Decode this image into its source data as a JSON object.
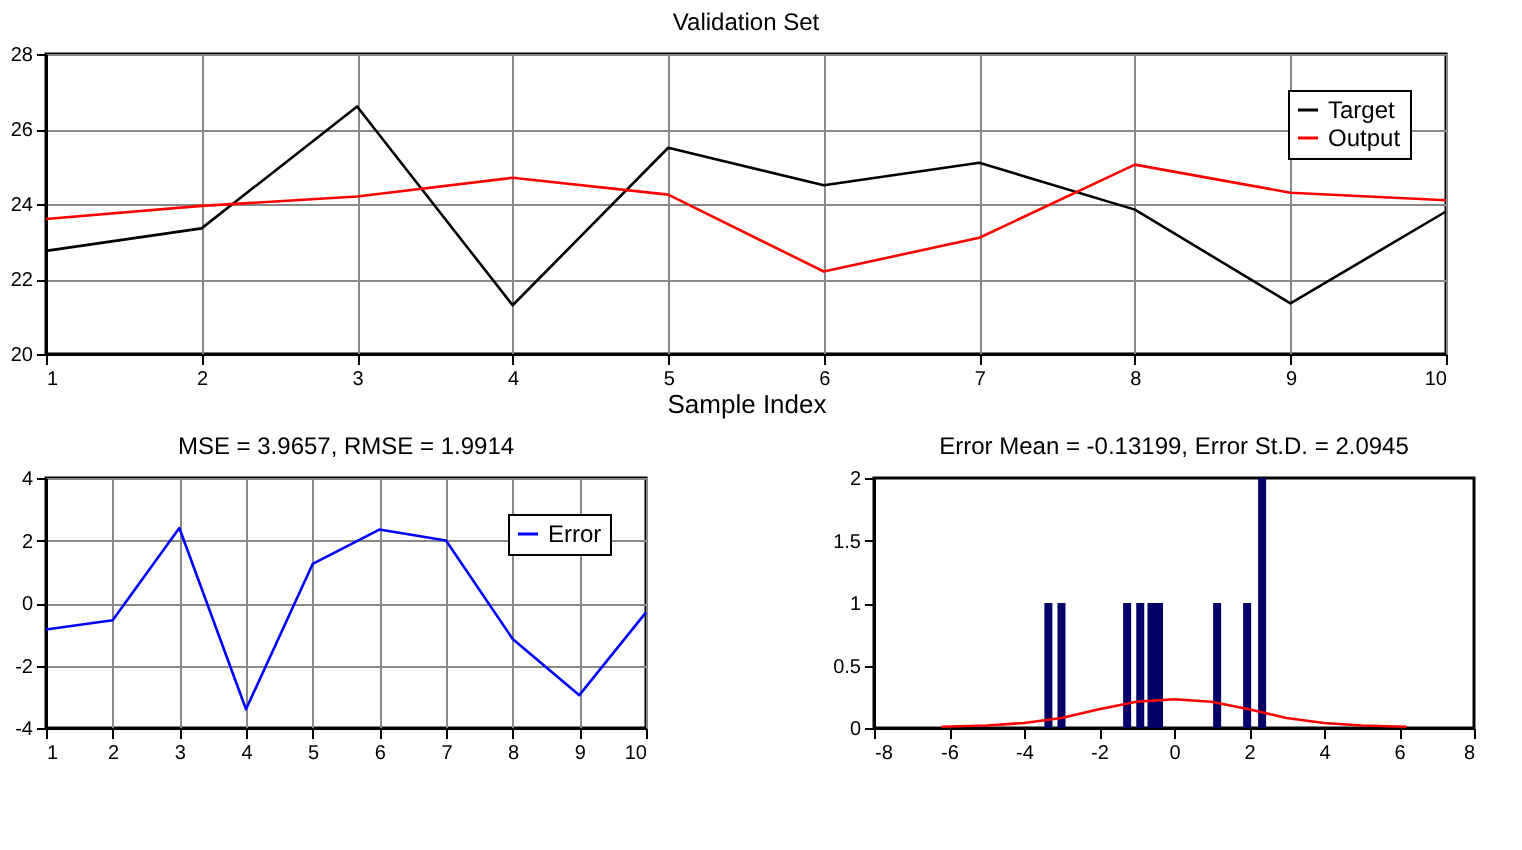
{
  "chart_data": [
    {
      "type": "line",
      "title": "Validation Set",
      "xlabel": "Sample Index",
      "x": [
        1,
        2,
        3,
        4,
        5,
        6,
        7,
        8,
        9,
        10
      ],
      "series": [
        {
          "name": "Target",
          "color": "#000000",
          "values": [
            22.75,
            23.35,
            26.6,
            21.3,
            25.5,
            24.5,
            25.1,
            23.85,
            21.35,
            23.8
          ]
        },
        {
          "name": "Output",
          "color": "#ff0000",
          "values": [
            23.6,
            23.95,
            24.2,
            24.7,
            24.25,
            22.2,
            23.1,
            25.05,
            24.3,
            24.1
          ]
        }
      ],
      "xlim": [
        1,
        10
      ],
      "xticks": [
        1,
        2,
        3,
        4,
        5,
        6,
        7,
        8,
        9,
        10
      ],
      "ylim": [
        20,
        28
      ],
      "yticks": [
        20,
        22,
        24,
        26,
        28
      ],
      "grid": true,
      "legend": "top right"
    },
    {
      "type": "line",
      "title": "MSE = 3.9657, RMSE = 1.9914",
      "x": [
        1,
        2,
        3,
        4,
        5,
        6,
        7,
        8,
        9,
        10
      ],
      "series": [
        {
          "name": "Error",
          "color": "#0000ff",
          "values": [
            -0.85,
            -0.55,
            2.4,
            -3.4,
            1.25,
            2.35,
            2.0,
            -1.15,
            -2.95,
            -0.3
          ]
        }
      ],
      "xlim": [
        1,
        10
      ],
      "xticks": [
        1,
        2,
        3,
        4,
        5,
        6,
        7,
        8,
        9,
        10
      ],
      "ylim": [
        -4,
        4
      ],
      "yticks": [
        -4,
        -2,
        0,
        2,
        4
      ],
      "grid": true,
      "legend": "top right"
    },
    {
      "type": "bar",
      "title": "Error Mean = -0.13199, Error St.D. = 2.0945",
      "series": [
        {
          "color": "#000066",
          "x": [
            -3.35,
            -3.0,
            -1.25,
            -0.9,
            -0.6,
            -0.4,
            1.15,
            1.95,
            2.35
          ],
          "values": [
            1,
            1,
            1,
            1,
            1,
            1,
            1,
            1,
            2
          ]
        },
        {
          "type": "line",
          "color": "#ff0000",
          "x": [
            -6.2,
            -5,
            -4,
            -3,
            -2,
            -1,
            0,
            1,
            2,
            3,
            4,
            5,
            6.2
          ],
          "values": [
            0.01,
            0.02,
            0.04,
            0.08,
            0.15,
            0.21,
            0.23,
            0.21,
            0.15,
            0.08,
            0.04,
            0.02,
            0.01
          ]
        }
      ],
      "xlim": [
        -8,
        8
      ],
      "xticks": [
        -8,
        -6,
        -4,
        -2,
        0,
        2,
        4,
        6,
        8
      ],
      "ylim": [
        0,
        2
      ],
      "yticks": [
        0,
        0.5,
        1,
        1.5,
        2
      ],
      "grid": false
    }
  ]
}
